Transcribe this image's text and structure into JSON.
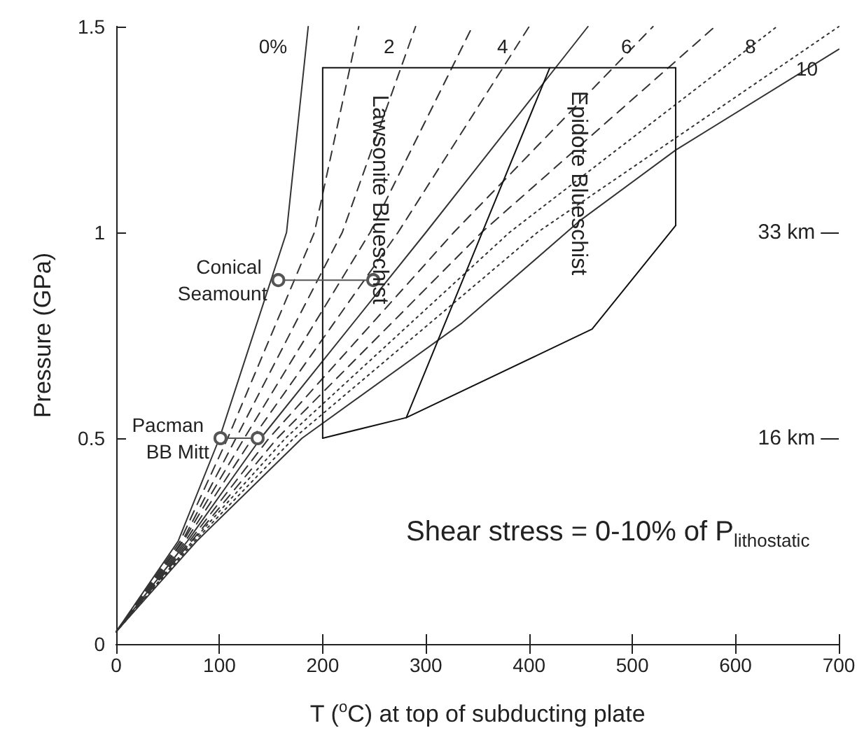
{
  "chart_data": {
    "type": "line",
    "xlabel": "T ($^{o}$C) at top of subducting plate",
    "ylabel": "Pressure (GPa)",
    "xlim": [
      0,
      700
    ],
    "xticks": [
      0,
      100,
      200,
      300,
      400,
      500,
      600,
      700
    ],
    "ylim": [
      0,
      1.5
    ],
    "yticks": [
      0,
      0.5,
      1,
      1.5
    ],
    "ref_lines": [
      {
        "axis": "y",
        "value": 1,
        "label": "33 km"
      },
      {
        "axis": "y",
        "value": 0.5,
        "label": "16 km"
      }
    ],
    "grid": false,
    "legend": false,
    "series": [
      {
        "name": "0%",
        "color": "#333333",
        "line_style": "solid",
        "marker": "none",
        "x": [
          0,
          60,
          100,
          165,
          186
        ],
        "values": [
          0.03,
          0.25,
          0.5,
          1.0,
          1.5
        ]
      },
      {
        "color": "#333333",
        "line_style": "dashed",
        "marker": "none",
        "x": [
          0,
          62,
          108,
          192,
          235
        ],
        "values": [
          0.03,
          0.25,
          0.5,
          1.0,
          1.5
        ]
      },
      {
        "name": "2",
        "color": "#333333",
        "line_style": "dashed",
        "marker": "none",
        "x": [
          0,
          64,
          116,
          219,
          290
        ],
        "values": [
          0.03,
          0.25,
          0.5,
          1.0,
          1.5
        ]
      },
      {
        "color": "#333333",
        "line_style": "dashed",
        "marker": "none",
        "x": [
          0,
          65,
          124,
          246,
          345
        ],
        "values": [
          0.03,
          0.25,
          0.5,
          1.0,
          1.5
        ]
      },
      {
        "name": "4",
        "color": "#333333",
        "line_style": "dashed",
        "marker": "none",
        "x": [
          0,
          67,
          132,
          273,
          400
        ],
        "values": [
          0.03,
          0.25,
          0.5,
          1.0,
          1.5
        ]
      },
      {
        "color": "#333333",
        "line_style": "solid",
        "marker": "none",
        "x": [
          0,
          69,
          140,
          300,
          457
        ],
        "values": [
          0.03,
          0.25,
          0.5,
          1.0,
          1.5
        ]
      },
      {
        "name": "6",
        "color": "#333333",
        "line_style": "dashed",
        "marker": "none",
        "x": [
          0,
          71,
          148,
          327,
          520
        ],
        "values": [
          0.03,
          0.25,
          0.5,
          1.0,
          1.5
        ]
      },
      {
        "color": "#333333",
        "line_style": "dashed",
        "marker": "none",
        "x": [
          0,
          73,
          156,
          354,
          580
        ],
        "values": [
          0.03,
          0.25,
          0.5,
          1.0,
          1.5
        ]
      },
      {
        "name": "8",
        "color": "#333333",
        "line_style": "dotted",
        "marker": "none",
        "x": [
          0,
          74,
          164,
          381,
          640
        ],
        "values": [
          0.03,
          0.25,
          0.5,
          1.0,
          1.5
        ]
      },
      {
        "color": "#333333",
        "line_style": "dotted",
        "marker": "none",
        "x": [
          0,
          76,
          172,
          408,
          700
        ],
        "values": [
          0.03,
          0.25,
          0.5,
          1.0,
          1.5
        ]
      },
      {
        "name": "10",
        "color": "#333333",
        "line_style": "solid",
        "marker": "none",
        "x": [
          0,
          78,
          180,
          335,
          450,
          542,
          700
        ],
        "values": [
          0.03,
          0.25,
          0.5,
          0.78,
          1.03,
          1.2,
          1.445
        ]
      },
      {
        "color": "#111111",
        "line_style": "solid",
        "marker": "none",
        "x": [
          200,
          200
        ],
        "values": [
          0.5,
          1.4
        ]
      },
      {
        "color": "#111111",
        "line_style": "solid",
        "marker": "none",
        "x": [
          200,
          542
        ],
        "values": [
          1.4,
          1.4
        ]
      },
      {
        "color": "#111111",
        "line_style": "solid",
        "marker": "none",
        "x": [
          281,
          420
        ],
        "values": [
          0.55,
          1.4
        ]
      },
      {
        "color": "#111111",
        "line_style": "solid",
        "marker": "none",
        "x": [
          200,
          281,
          461,
          542
        ],
        "values": [
          0.5,
          0.55,
          0.765,
          1.017
        ]
      },
      {
        "color": "#111111",
        "line_style": "solid",
        "marker": "none",
        "x": [
          542,
          542
        ],
        "values": [
          1.017,
          1.4
        ]
      },
      {
        "color": "#555555",
        "line_style": "solid",
        "marker": "circle",
        "x": [
          157,
          249
        ],
        "values": [
          0.884,
          0.884
        ]
      },
      {
        "color": "#555555",
        "line_style": "solid",
        "marker": "circle",
        "x": [
          101,
          137
        ],
        "values": [
          0.5,
          0.5
        ]
      }
    ],
    "annotations": [
      {
        "text": "Lawsonite Blueschist",
        "x": 255,
        "y": 1.08
      },
      {
        "text": "Epidote Blueschist",
        "x": 448,
        "y": 1.12
      },
      {
        "text": "Conical Seamount",
        "x": 157,
        "y": 0.884
      },
      {
        "text": "Pacman BB Mitt",
        "x": 101,
        "y": 0.5
      },
      "Shear stress = 0-10% of P$_{lithostatic}$"
    ]
  }
}
